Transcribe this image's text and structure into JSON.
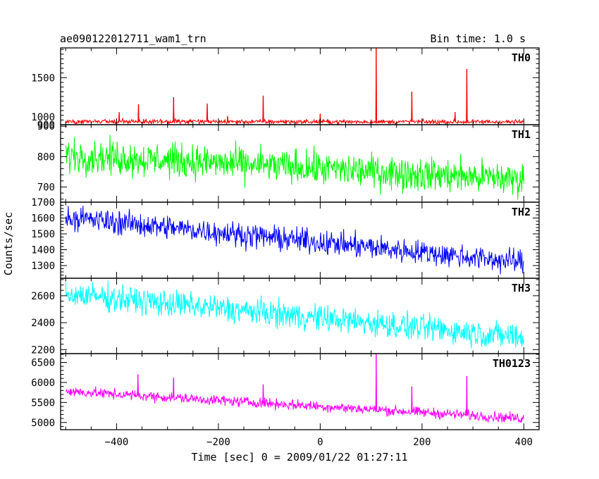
{
  "header": {
    "title": "ae090122012711_wam1_trn",
    "bin_label": "Bin time: 1.0 s"
  },
  "ylabel": "Counts/sec",
  "xlabel": "Time [sec] 0 = 2009/01/22 01:27:11",
  "colors": {
    "TH0": "#ff0000",
    "TH1": "#00ff00",
    "TH2": "#0000ff",
    "TH3": "#00ffff",
    "TH0123": "#ff00ff",
    "frame": "#000000"
  },
  "chart_data": {
    "type": "line",
    "title": "ae090122012711_wam1_trn",
    "subtitle": "Bin time: 1.0 s",
    "xlabel": "Time [sec] 0 = 2009/01/22 01:27:11",
    "ylabel": "Counts/sec",
    "xlim": [
      -510,
      430
    ],
    "x_ticks": [
      -400,
      -200,
      0,
      200,
      400
    ],
    "x_tick_labels": [
      "−400",
      "−200",
      "0",
      "200",
      "400"
    ],
    "x_range": [
      -500,
      400
    ],
    "grid": false,
    "legend": "none",
    "panels": [
      {
        "name": "TH0",
        "ylim": [
          900,
          1880
        ],
        "y_ticks": [
          900,
          1000,
          1500
        ],
        "y_tick_labels": [
          "900",
          "1000",
          "1500"
        ],
        "baseline": {
          "start": 940,
          "end": 935
        },
        "noise": 25,
        "spikes": [
          {
            "x": -395,
            "y": 1060
          },
          {
            "x": -357,
            "y": 1160
          },
          {
            "x": -288,
            "y": 1250
          },
          {
            "x": -222,
            "y": 1170
          },
          {
            "x": -182,
            "y": 1010
          },
          {
            "x": -112,
            "y": 1270
          },
          {
            "x": 0,
            "y": 1040
          },
          {
            "x": 110,
            "y": 1880
          },
          {
            "x": 180,
            "y": 1320
          },
          {
            "x": 265,
            "y": 1060
          },
          {
            "x": 288,
            "y": 1610
          },
          {
            "x": 332,
            "y": 960
          }
        ]
      },
      {
        "name": "TH1",
        "ylim": [
          650,
          905
        ],
        "y_ticks": [
          700,
          800,
          900
        ],
        "y_tick_labels": [
          "700",
          "800",
          "900"
        ],
        "baseline": {
          "start": 805,
          "end": 725
        },
        "noise": 48,
        "spikes": []
      },
      {
        "name": "TH2",
        "ylim": [
          1220,
          1700
        ],
        "y_ticks": [
          1300,
          1400,
          1500,
          1600,
          1700
        ],
        "y_tick_labels": [
          "1300",
          "1400",
          "1500",
          "1600",
          "1700"
        ],
        "baseline": {
          "start": 1605,
          "end": 1320
        },
        "noise": 65,
        "spikes": []
      },
      {
        "name": "TH3",
        "ylim": [
          2170,
          2730
        ],
        "y_ticks": [
          2200,
          2400,
          2600
        ],
        "y_tick_labels": [
          "2200",
          "2400",
          "2600"
        ],
        "baseline": {
          "start": 2615,
          "end": 2290
        },
        "noise": 85,
        "spikes": []
      },
      {
        "name": "TH0123",
        "ylim": [
          4820,
          6720
        ],
        "y_ticks": [
          5000,
          5500,
          6000,
          6500
        ],
        "y_tick_labels": [
          "5000",
          "5500",
          "6000",
          "6500"
        ],
        "baseline": {
          "start": 5780,
          "end": 5100
        },
        "noise": 110,
        "spikes": [
          {
            "x": -358,
            "y": 6200
          },
          {
            "x": -288,
            "y": 6120
          },
          {
            "x": -112,
            "y": 5950
          },
          {
            "x": 110,
            "y": 6720
          },
          {
            "x": 180,
            "y": 5900
          },
          {
            "x": 288,
            "y": 6160
          }
        ]
      }
    ]
  }
}
